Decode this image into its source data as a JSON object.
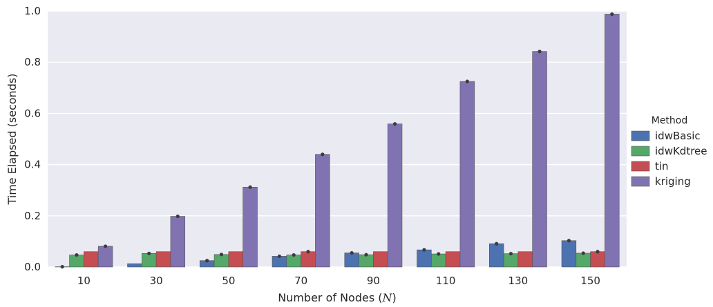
{
  "chart_data": {
    "type": "bar",
    "title": "",
    "xlabel": "Number of Nodes (N)",
    "xlabel_parts": {
      "before": "Number of Nodes (",
      "symbol": "N",
      "after": ")"
    },
    "ylabel": "Time Elapsed (seconds)",
    "ylim": [
      0.0,
      1.0
    ],
    "yticks": [
      "0.0",
      "0.2",
      "0.4",
      "0.6",
      "0.8",
      "1.0"
    ],
    "grid": true,
    "legend_placement": "right",
    "legend_title": "Method",
    "categories": [
      "10",
      "30",
      "50",
      "70",
      "90",
      "110",
      "130",
      "150"
    ],
    "series": [
      {
        "name": "idwBasic",
        "color": "#4c72b0",
        "values": [
          0.001,
          0.013,
          0.025,
          0.042,
          0.055,
          0.067,
          0.091,
          0.103
        ],
        "error_points": [
          true,
          false,
          true,
          true,
          true,
          true,
          true,
          true
        ]
      },
      {
        "name": "idwKdtree",
        "color": "#55a868",
        "values": [
          0.047,
          0.053,
          0.049,
          0.047,
          0.048,
          0.051,
          0.052,
          0.054
        ],
        "error_points": [
          true,
          true,
          true,
          true,
          true,
          true,
          true,
          true
        ]
      },
      {
        "name": "tin",
        "color": "#c44e52",
        "values": [
          0.06,
          0.06,
          0.06,
          0.06,
          0.06,
          0.06,
          0.06,
          0.06
        ],
        "error_points": [
          false,
          false,
          false,
          true,
          false,
          false,
          false,
          true
        ]
      },
      {
        "name": "kriging",
        "color": "#8172b2",
        "values": [
          0.081,
          0.198,
          0.312,
          0.44,
          0.559,
          0.725,
          0.842,
          0.988
        ],
        "error_points": [
          true,
          true,
          true,
          true,
          true,
          true,
          true,
          true
        ]
      }
    ],
    "colors": {
      "background": "#eaeaf2",
      "grid": "#ffffff",
      "marker": "#3b3b3b",
      "text": "#262626",
      "bar_edge": "#555555"
    }
  }
}
